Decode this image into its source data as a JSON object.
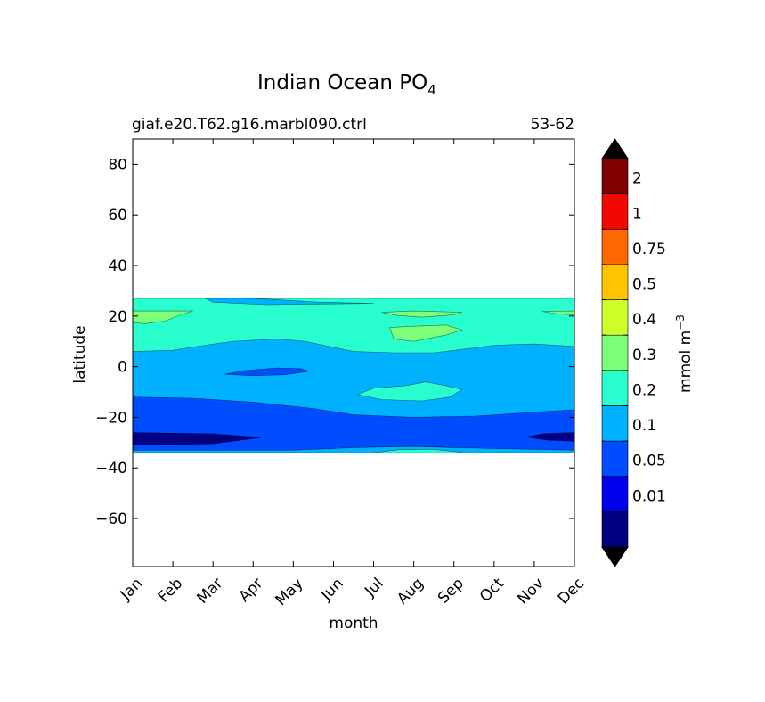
{
  "chart_data": {
    "type": "heatmap",
    "title_main": "Indian Ocean PO",
    "title_sub": "4",
    "left_label": "giaf.e20.T62.g16.marbl090.ctrl",
    "right_label": "53-62",
    "xlabel": "month",
    "ylabel": "latitude",
    "x_ticks": [
      "Jan",
      "Feb",
      "Mar",
      "Apr",
      "May",
      "Jun",
      "Jul",
      "Aug",
      "Sep",
      "Oct",
      "Nov",
      "Dec"
    ],
    "y_ticks": [
      80,
      60,
      40,
      20,
      0,
      -20,
      -40,
      -60
    ],
    "xlim": [
      0,
      11
    ],
    "ylim": [
      -79,
      90
    ],
    "colorbar": {
      "label": "mmol m",
      "label_sup": "−3",
      "ticks": [
        "2",
        "1",
        "0.75",
        "0.5",
        "0.4",
        "0.3",
        "0.2",
        "0.1",
        "0.05",
        "0.01"
      ],
      "colors": [
        "#000080",
        "#0000f1",
        "#004dff",
        "#00b1ff",
        "#29ffce",
        "#7dff7a",
        "#ceff29",
        "#ffc400",
        "#ff6800",
        "#f10800",
        "#800000"
      ],
      "extend_colors": {
        "under": "#000000",
        "over": "#000000"
      }
    },
    "data_bands": [
      {
        "level": "0.05-0.1",
        "lat_top": -12,
        "lat_bottom": -33,
        "color": "#004dff"
      },
      {
        "level": "0.01-0.05",
        "lat_top": -26,
        "lat_bottom": -31,
        "color": "#000080"
      },
      {
        "level": "0.1-0.2",
        "lat_top": 6,
        "lat_bottom": -20,
        "color": "#00b1ff"
      },
      {
        "level": "0.2-0.3",
        "lat_top": 27,
        "lat_bottom": 5,
        "color": "#29ffce"
      },
      {
        "level": "0.3-0.4",
        "lat_top": 22,
        "lat_bottom": 14,
        "color": "#7dff7a"
      }
    ],
    "data_extent": {
      "lat_top": 27,
      "lat_bottom": -34
    }
  }
}
